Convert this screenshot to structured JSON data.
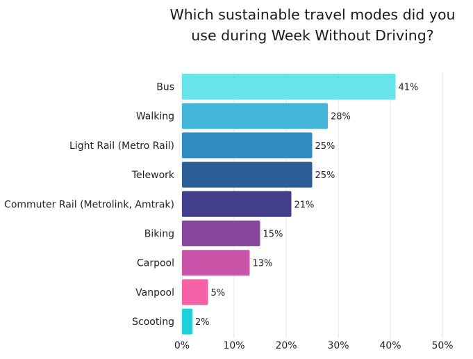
{
  "chart_data": {
    "type": "bar",
    "orientation": "horizontal",
    "title": "Which sustainable travel modes did you use during Week Without Driving?",
    "xlabel": "",
    "ylabel": "",
    "xlim": [
      0,
      50
    ],
    "grid": true,
    "categories": [
      "Bus",
      "Walking",
      "Light Rail (Metro Rail)",
      "Telework",
      "Commuter Rail (Metrolink, Amtrak)",
      "Biking",
      "Carpool",
      "Vanpool",
      "Scooting"
    ],
    "values": [
      41,
      28,
      25,
      25,
      21,
      15,
      13,
      5,
      2
    ],
    "value_labels": [
      "41%",
      "28%",
      "25%",
      "25%",
      "21%",
      "15%",
      "13%",
      "5%",
      "2%"
    ],
    "ticks": [
      0,
      10,
      20,
      30,
      40,
      50
    ],
    "tick_labels": [
      "0%",
      "10%",
      "20%",
      "30%",
      "40%",
      "50%"
    ],
    "colors": [
      "#67e3ea",
      "#44b6d8",
      "#2e8dbe",
      "#2d5e96",
      "#433f8b",
      "#86479c",
      "#c954a8",
      "#f761a8",
      "#1ed0db"
    ]
  }
}
